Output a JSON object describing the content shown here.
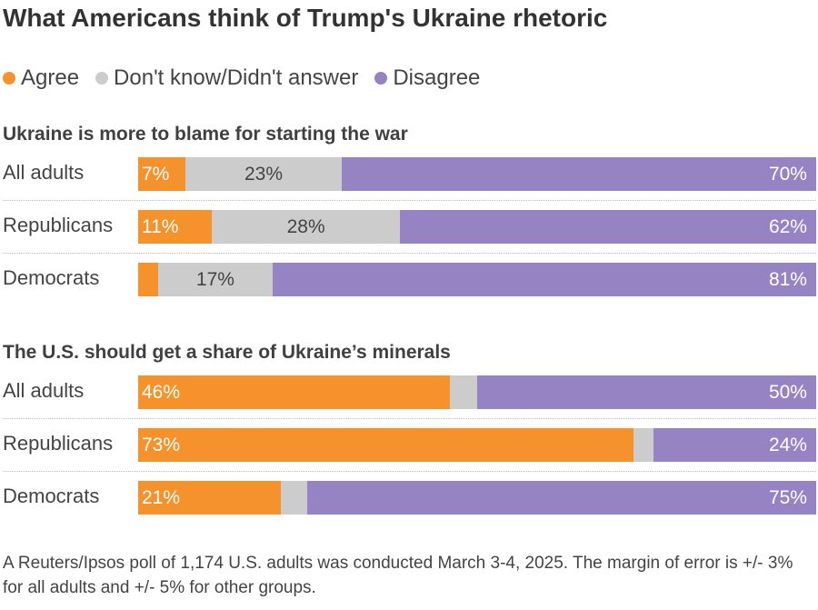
{
  "chart_data": {
    "type": "bar",
    "orientation": "horizontal-stacked-100",
    "title": "What Americans think of Trump's Ukraine rhetoric",
    "legend": {
      "placement": "top-left",
      "entries": [
        {
          "name": "Agree",
          "color": "#f5922b"
        },
        {
          "name": "Don't know/Didn't answer",
          "color": "#cccccc"
        },
        {
          "name": "Disagree",
          "color": "#9683c4"
        }
      ]
    },
    "panels": [
      {
        "title": "Ukraine is more to blame for starting the war",
        "categories": [
          "All adults",
          "Republicans",
          "Democrats"
        ],
        "series": [
          {
            "name": "Agree",
            "values": [
              7,
              11,
              3
            ],
            "labels": [
              "7%",
              "11%",
              ""
            ]
          },
          {
            "name": "Don't know/Didn't answer",
            "values": [
              23,
              28,
              17
            ],
            "labels": [
              "23%",
              "28%",
              "17%"
            ]
          },
          {
            "name": "Disagree",
            "values": [
              70,
              62,
              81
            ],
            "labels": [
              "70%",
              "62%",
              "81%"
            ]
          }
        ]
      },
      {
        "title": "The U.S. should get a share of Ukraine’s minerals",
        "categories": [
          "All adults",
          "Republicans",
          "Democrats"
        ],
        "series": [
          {
            "name": "Agree",
            "values": [
              46,
              73,
              21
            ],
            "labels": [
              "46%",
              "73%",
              "21%"
            ]
          },
          {
            "name": "Don't know/Didn't answer",
            "values": [
              4,
              3,
              4
            ],
            "labels": [
              "",
              "",
              ""
            ]
          },
          {
            "name": "Disagree",
            "values": [
              50,
              24,
              75
            ],
            "labels": [
              "50%",
              "24%",
              "75%"
            ]
          }
        ]
      }
    ]
  },
  "footnote": "A Reuters/Ipsos poll of 1,174 U.S. adults was conducted March 3-4, 2025. The margin of error is +/- 3% for all adults and +/- 5% for other groups."
}
